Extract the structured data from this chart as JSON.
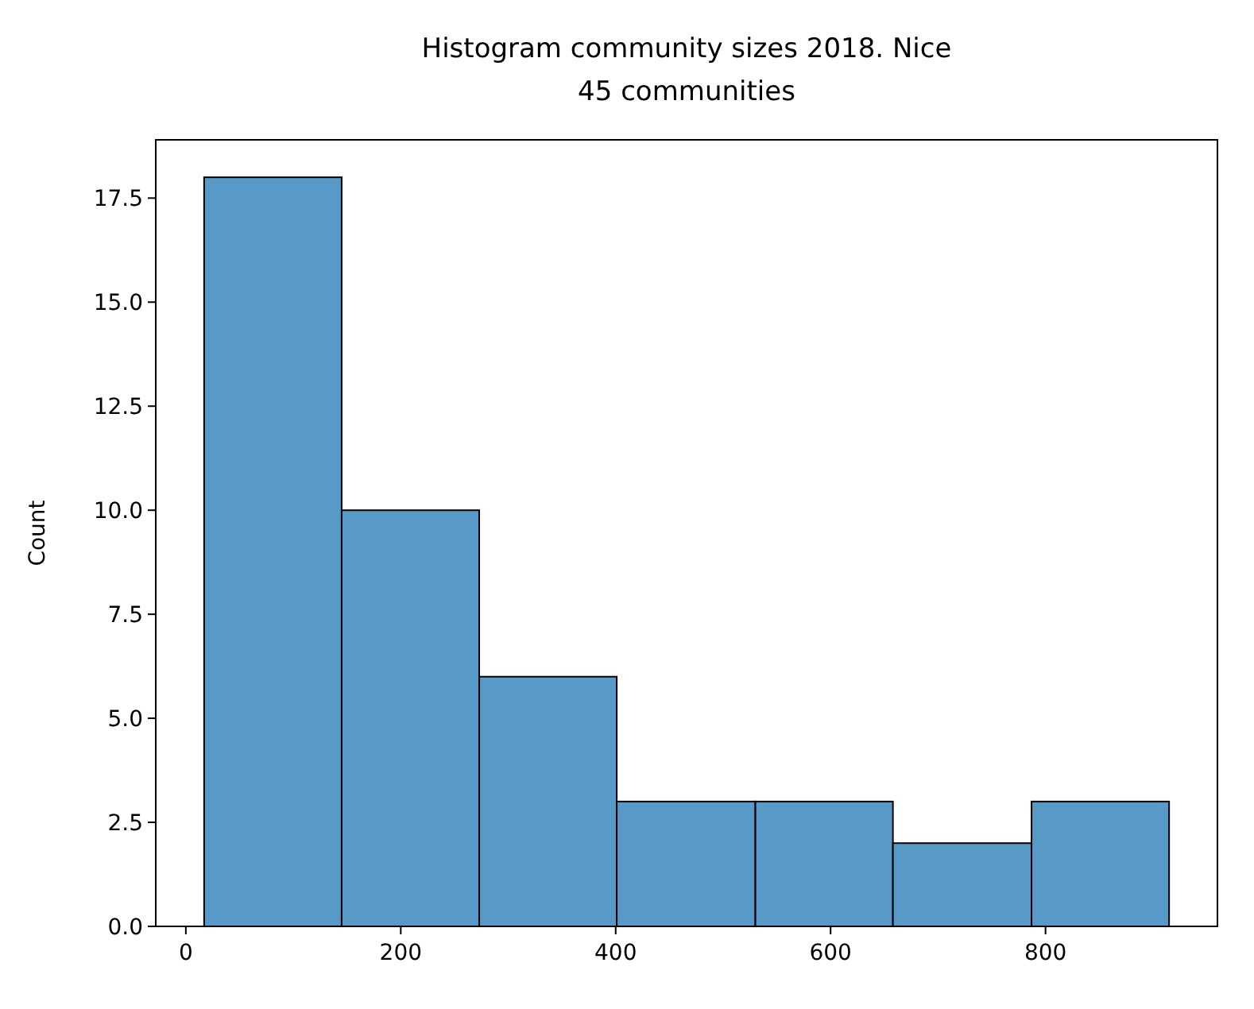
{
  "chart_data": {
    "type": "histogram",
    "title": "Histogram community sizes 2018. Nice",
    "subtitle": "45 communities",
    "ylabel": "Count",
    "bins": [
      17,
      145,
      273,
      401,
      530,
      658,
      787,
      915
    ],
    "values": [
      18,
      10,
      6,
      3,
      3,
      2,
      3
    ],
    "color": "#5799c7",
    "xlim": [
      -28,
      960
    ],
    "xticks": [
      0,
      200,
      400,
      600,
      800
    ],
    "ylim": [
      0,
      18.9
    ],
    "yticks": [
      {
        "value": 0,
        "label": "0.0"
      },
      {
        "value": 2.5,
        "label": "2.5"
      },
      {
        "value": 5,
        "label": "5.0"
      },
      {
        "value": 7.5,
        "label": "7.5"
      },
      {
        "value": 10,
        "label": "10.0"
      },
      {
        "value": 12.5,
        "label": "12.5"
      },
      {
        "value": 15,
        "label": "15.0"
      },
      {
        "value": 17.5,
        "label": "17.5"
      }
    ],
    "grid": false
  }
}
